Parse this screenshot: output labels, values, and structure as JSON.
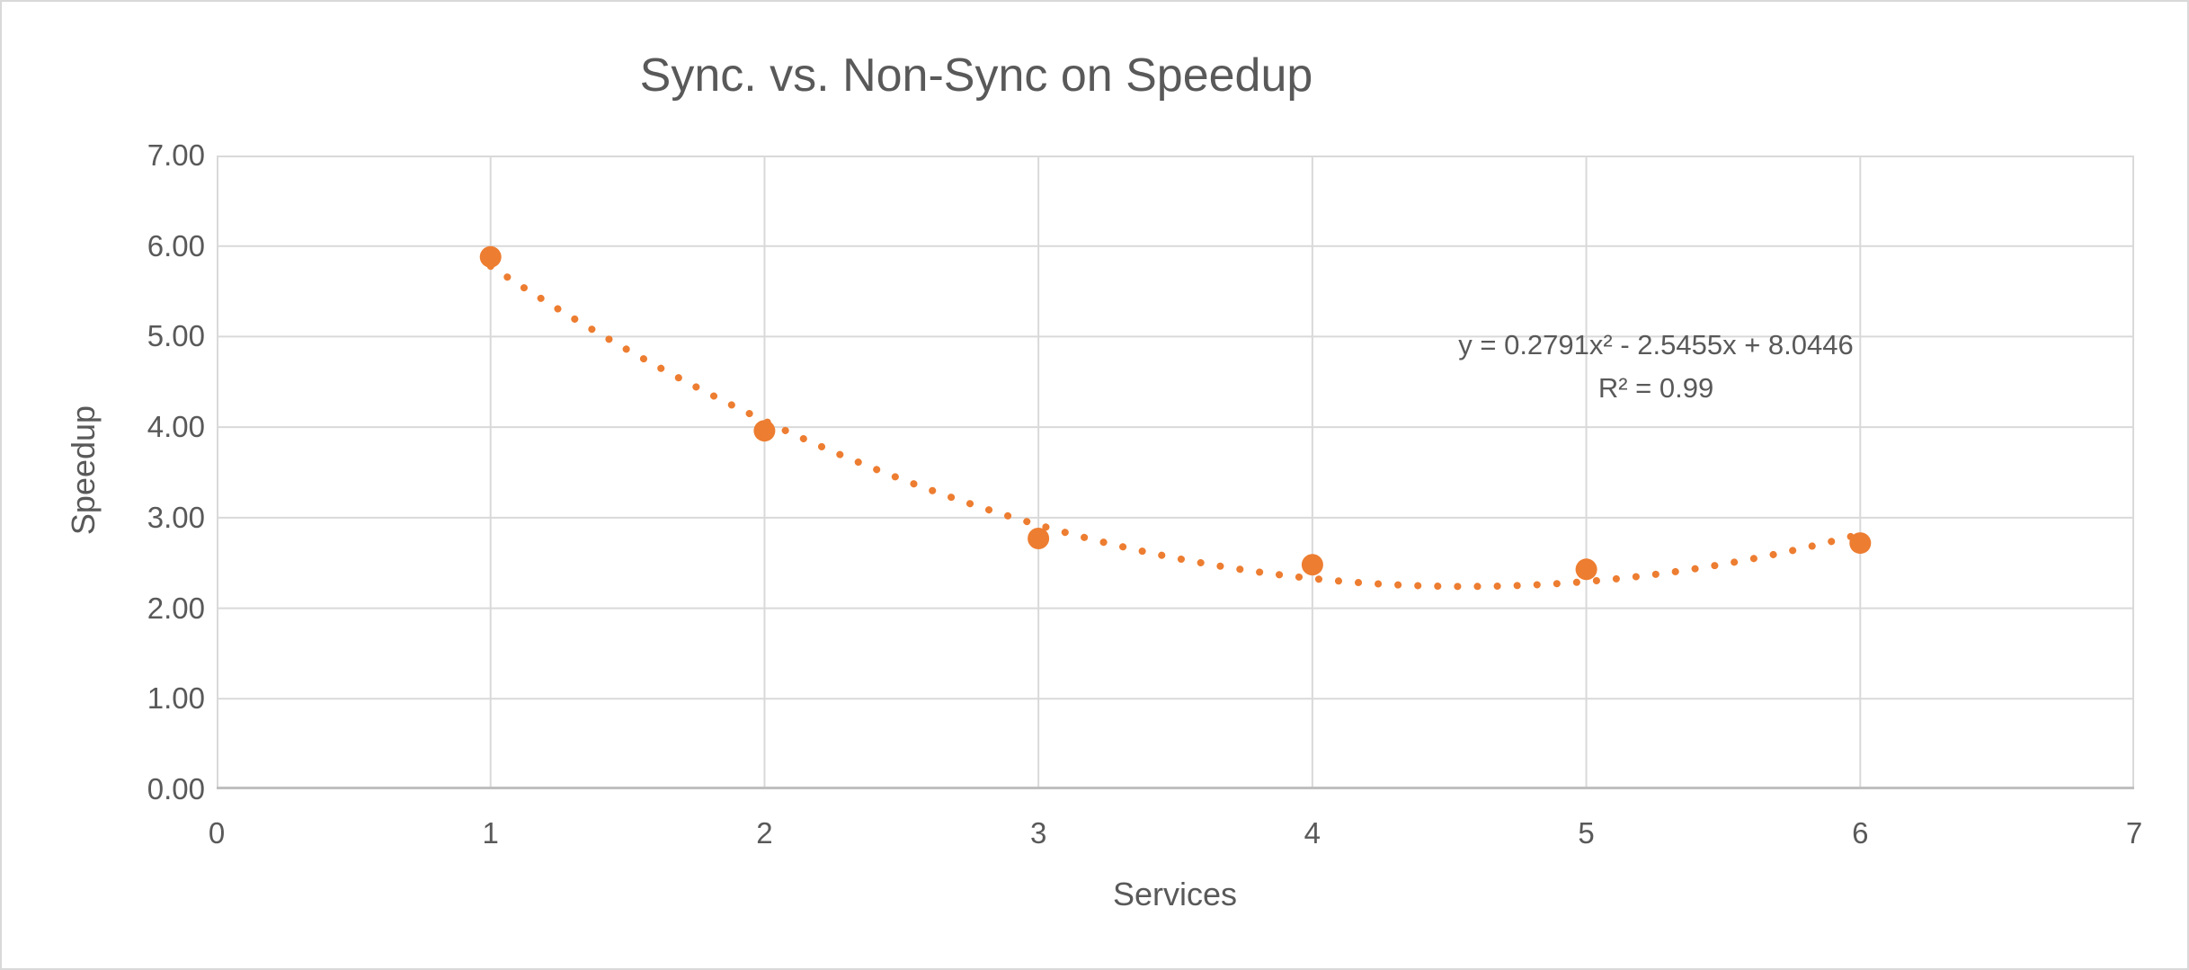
{
  "chart_data": {
    "type": "scatter",
    "title": "Sync. vs. Non-Sync on Speedup",
    "xlabel": "Services",
    "ylabel": "Speedup",
    "x": [
      1,
      2,
      3,
      4,
      5,
      6
    ],
    "y": [
      5.88,
      3.96,
      2.77,
      2.48,
      2.43,
      2.72
    ],
    "xlim": [
      0,
      7
    ],
    "ylim": [
      0,
      7
    ],
    "x_ticks": [
      "0",
      "1",
      "2",
      "3",
      "4",
      "5",
      "6",
      "7"
    ],
    "y_ticks": [
      "0.00",
      "1.00",
      "2.00",
      "3.00",
      "4.00",
      "5.00",
      "6.00",
      "7.00"
    ],
    "grid": true,
    "legend": "none",
    "trendline": {
      "kind": "polynomial",
      "degree": 2,
      "a": 0.2791,
      "b": -2.5455,
      "c": 8.0446,
      "x_start": 1,
      "x_end": 6,
      "style": "dotted"
    },
    "equation_lines": [
      "y = 0.2791x² - 2.5455x + 8.0446",
      "R² = 0.99"
    ],
    "colors": {
      "series": "#ED7D31",
      "gridline": "#D9D9D9",
      "plot_border": "#D9D9D9",
      "axis_line": "#BFBFBF",
      "text": "#595959",
      "background": "#FFFFFF",
      "chart_border": "#D9D9D9"
    }
  }
}
